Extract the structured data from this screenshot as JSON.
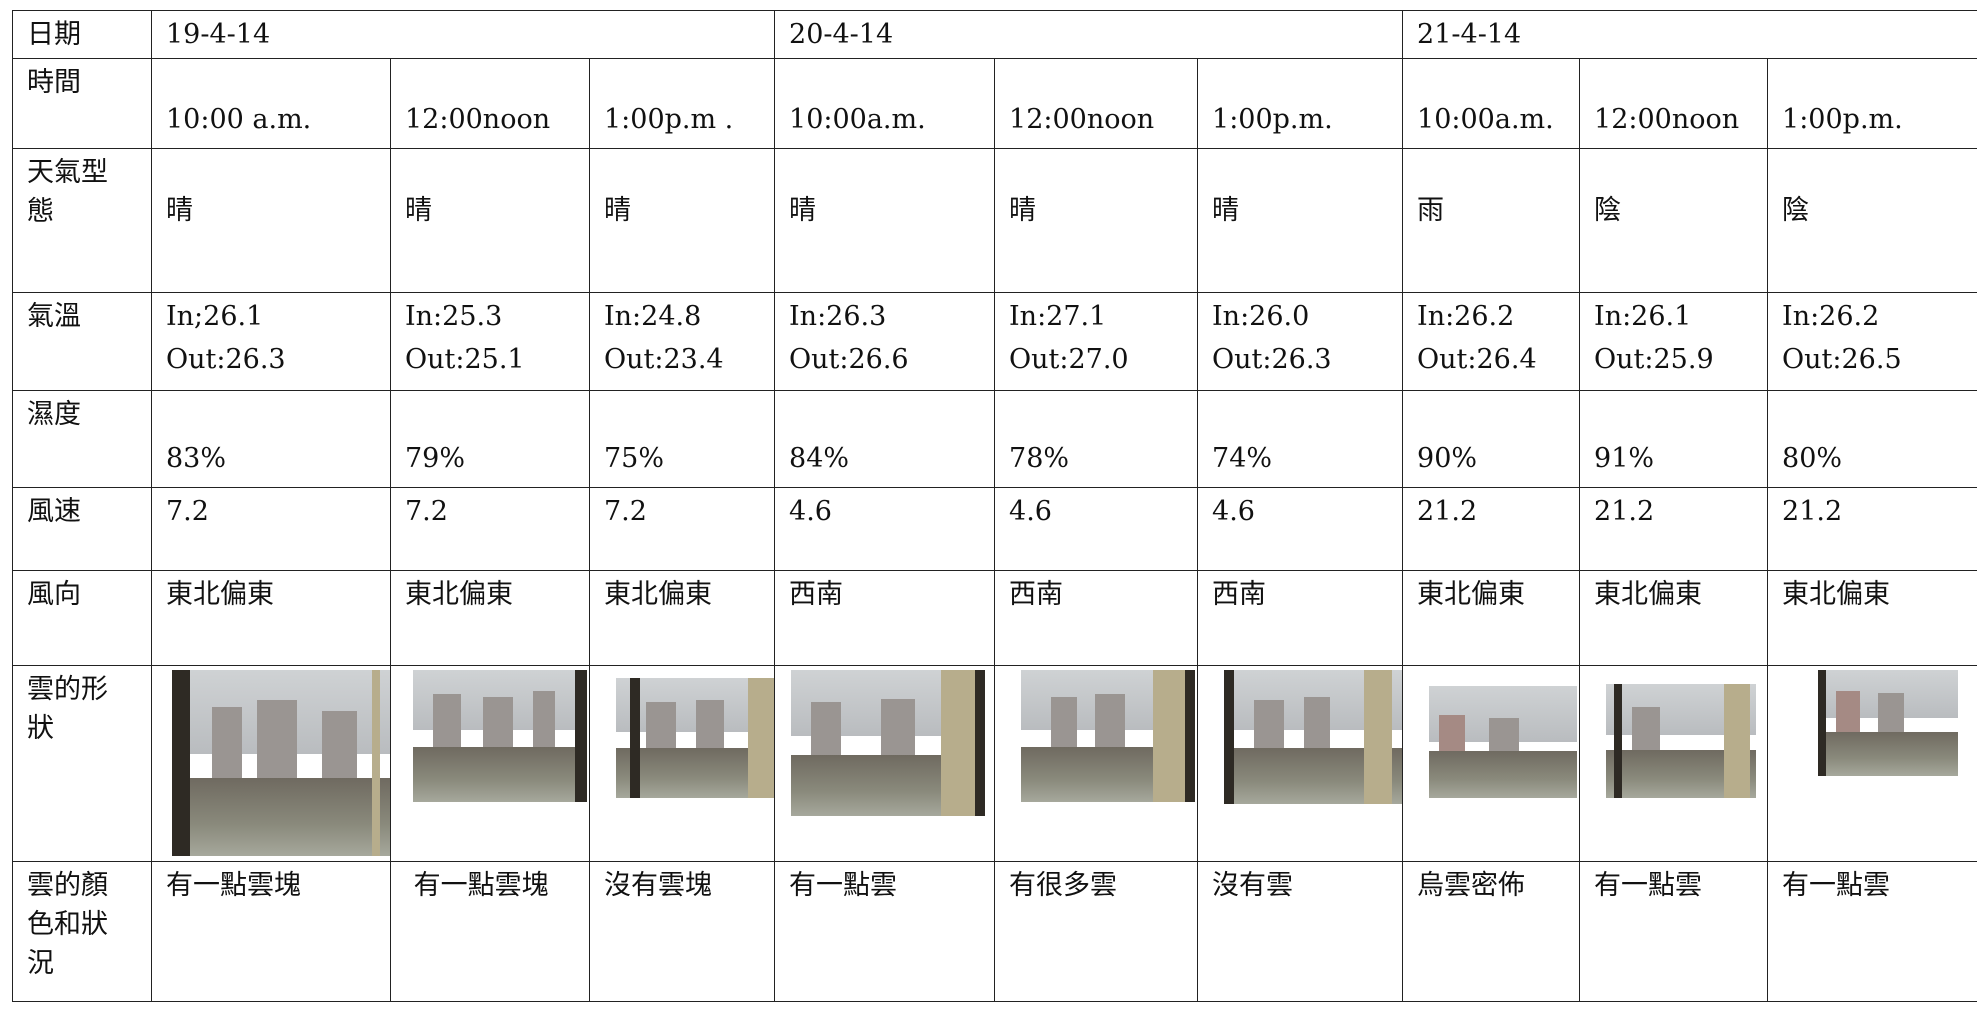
{
  "rows": {
    "date": {
      "label": "日期",
      "values": [
        "19-4-14",
        "20-4-14",
        "21-4-14"
      ]
    },
    "time": {
      "label": "時間",
      "values": [
        "10:00 a.m.",
        "12:00noon",
        "1:00p.m .",
        "10:00a.m.",
        "12:00noon",
        "1:00p.m.",
        "10:00a.m.",
        "12:00noon",
        "1:00p.m."
      ]
    },
    "weather": {
      "label": "天氣型態",
      "label_l1": "天氣型",
      "label_l2": "態",
      "values": [
        "晴",
        "晴",
        "晴",
        "晴",
        "晴",
        "晴",
        "雨",
        "陰",
        "陰"
      ]
    },
    "temp": {
      "label": "氣溫",
      "in": [
        "In;26.1",
        "In:25.3",
        "In:24.8",
        "In:26.3",
        "In:27.1",
        "In:26.0",
        "In:26.2",
        "In:26.1",
        "In:26.2"
      ],
      "out": [
        "Out:26.3",
        "Out:25.1",
        "Out:23.4",
        "Out:26.6",
        "Out:27.0",
        "Out:26.3",
        "Out:26.4",
        "Out:25.9",
        "Out:26.5"
      ]
    },
    "humidity": {
      "label": "濕度",
      "values": [
        "83%",
        "79%",
        "75%",
        "84%",
        "78%",
        "74%",
        "90%",
        "91%",
        "80%"
      ]
    },
    "wind_speed": {
      "label": "風速",
      "values": [
        "7.2",
        "7.2",
        "7.2",
        "4.6",
        "4.6",
        "4.6",
        "21.2",
        "21.2",
        "21.2"
      ]
    },
    "wind_dir": {
      "label": "風向",
      "values": [
        "東北偏東",
        "東北偏東",
        "東北偏東",
        "西南",
        "西南",
        "西南",
        "東北偏東",
        "東北偏東",
        "東北偏東"
      ]
    },
    "cloud_shape": {
      "label": "雲的形狀",
      "label_l1": "雲的形",
      "label_l2": "狀"
    },
    "cloud_color": {
      "label": "雲的顏色和狀況",
      "label_l1": "雲的顏",
      "label_l2": "色和狀",
      "label_l3": "況",
      "values": [
        "有一點雲塊",
        " 有一點雲塊",
        "沒有雲塊",
        "有一點雲",
        "有很多雲",
        "沒有雲",
        "烏雲密佈",
        "有一點雲",
        "有一點雲"
      ]
    }
  },
  "photos": [
    {
      "description_icon": "cloud-photo"
    },
    {
      "description_icon": "cloud-photo"
    },
    {
      "description_icon": "cloud-photo"
    },
    {
      "description_icon": "cloud-photo"
    },
    {
      "description_icon": "cloud-photo"
    },
    {
      "description_icon": "cloud-photo"
    },
    {
      "description_icon": "cloud-photo"
    },
    {
      "description_icon": "cloud-photo"
    },
    {
      "description_icon": "cloud-photo"
    }
  ],
  "colors": {
    "border": "#222222",
    "sky": "#cfd2d4",
    "building": "#9a9592",
    "window_frame": "#2e2a24"
  }
}
